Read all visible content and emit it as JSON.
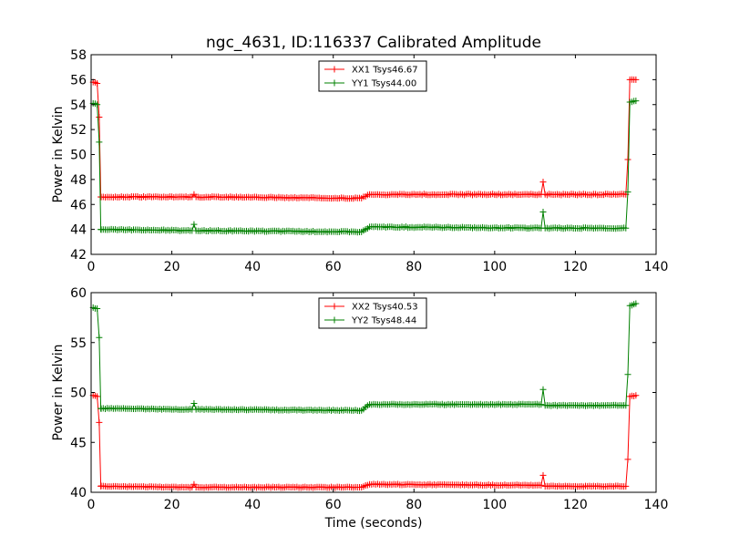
{
  "figure": {
    "title": "ngc_4631, ID:116337 Calibrated Amplitude"
  },
  "chart_data": [
    {
      "type": "line",
      "title": "ngc_4631, ID:116337 Calibrated Amplitude",
      "xlabel": "",
      "ylabel": "Power in Kelvin",
      "xlim": [
        0,
        140
      ],
      "ylim": [
        42,
        58
      ],
      "xticks": [
        0,
        20,
        40,
        60,
        80,
        100,
        120,
        140
      ],
      "yticks": [
        42,
        44,
        46,
        48,
        50,
        52,
        54,
        56,
        58
      ],
      "grid": false,
      "legend_position": "top-center",
      "series": [
        {
          "name": "XX1 Tsys46.67",
          "color": "#ff0000",
          "marker": "+",
          "knots": [
            [
              0.5,
              55.8
            ],
            [
              1.5,
              55.7
            ],
            [
              2.0,
              53.0
            ],
            [
              2.4,
              46.6
            ],
            [
              25,
              46.6
            ],
            [
              25.5,
              46.8
            ],
            [
              26,
              46.6
            ],
            [
              67,
              46.5
            ],
            [
              69,
              46.8
            ],
            [
              111.5,
              46.8
            ],
            [
              112,
              47.8
            ],
            [
              112.5,
              46.8
            ],
            [
              132.5,
              46.8
            ],
            [
              133,
              49.6
            ],
            [
              133.5,
              56.0
            ],
            [
              135,
              56.0
            ]
          ]
        },
        {
          "name": "YY1 Tsys44.00",
          "color": "#008000",
          "marker": "+",
          "knots": [
            [
              0.5,
              54.1
            ],
            [
              1.5,
              54.0
            ],
            [
              2.0,
              51.0
            ],
            [
              2.4,
              44.0
            ],
            [
              25,
              43.9
            ],
            [
              25.5,
              44.4
            ],
            [
              26,
              43.9
            ],
            [
              67,
              43.8
            ],
            [
              69,
              44.2
            ],
            [
              111.5,
              44.1
            ],
            [
              112,
              45.4
            ],
            [
              112.5,
              44.1
            ],
            [
              132.5,
              44.1
            ],
            [
              133,
              47.0
            ],
            [
              133.5,
              54.2
            ],
            [
              135,
              54.3
            ]
          ]
        }
      ]
    },
    {
      "type": "line",
      "title": "",
      "xlabel": "Time (seconds)",
      "ylabel": "Power in Kelvin",
      "xlim": [
        0,
        140
      ],
      "ylim": [
        40,
        60
      ],
      "xticks": [
        0,
        20,
        40,
        60,
        80,
        100,
        120,
        140
      ],
      "yticks": [
        40,
        45,
        50,
        55,
        60
      ],
      "grid": false,
      "legend_position": "top-center",
      "series": [
        {
          "name": "XX2 Tsys40.53",
          "color": "#ff0000",
          "marker": "+",
          "knots": [
            [
              0.5,
              49.7
            ],
            [
              1.5,
              49.6
            ],
            [
              2.0,
              47.0
            ],
            [
              2.4,
              40.6
            ],
            [
              25,
              40.5
            ],
            [
              25.5,
              40.8
            ],
            [
              26,
              40.5
            ],
            [
              67,
              40.5
            ],
            [
              69,
              40.8
            ],
            [
              111.5,
              40.7
            ],
            [
              112,
              41.7
            ],
            [
              112.5,
              40.6
            ],
            [
              132.5,
              40.6
            ],
            [
              133,
              43.3
            ],
            [
              133.5,
              49.6
            ],
            [
              135,
              49.7
            ]
          ]
        },
        {
          "name": "YY2 Tsys48.44",
          "color": "#008000",
          "marker": "+",
          "knots": [
            [
              0.5,
              58.5
            ],
            [
              1.5,
              58.4
            ],
            [
              2.0,
              55.5
            ],
            [
              2.4,
              48.4
            ],
            [
              25,
              48.3
            ],
            [
              25.5,
              48.9
            ],
            [
              26,
              48.3
            ],
            [
              67,
              48.2
            ],
            [
              69,
              48.8
            ],
            [
              111.5,
              48.8
            ],
            [
              112,
              50.3
            ],
            [
              112.5,
              48.7
            ],
            [
              132.5,
              48.7
            ],
            [
              133,
              51.8
            ],
            [
              133.5,
              58.7
            ],
            [
              135,
              58.9
            ]
          ]
        }
      ]
    }
  ]
}
